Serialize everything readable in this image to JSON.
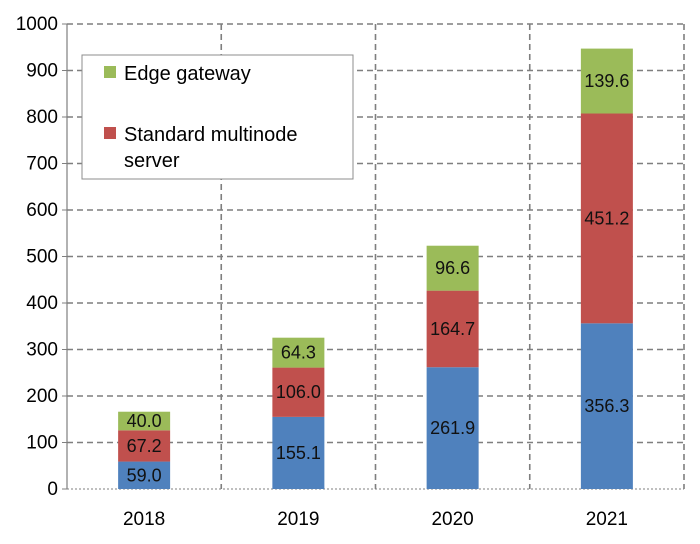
{
  "chart_data": {
    "type": "bar",
    "stacked": true,
    "categories": [
      "2018",
      "2019",
      "2020",
      "2021"
    ],
    "series": [
      {
        "name": "",
        "color": "#4f81bd",
        "values": [
          59.0,
          155.1,
          261.9,
          356.3
        ]
      },
      {
        "name": "Standard multinode server",
        "color": "#c0504d",
        "values": [
          67.2,
          106.0,
          164.7,
          451.2
        ]
      },
      {
        "name": "Edge gateway",
        "color": "#9bbb59",
        "values": [
          40.0,
          64.3,
          96.6,
          139.6
        ]
      }
    ],
    "ylim": [
      0,
      1000
    ],
    "yticks": [
      0,
      100,
      200,
      300,
      400,
      500,
      600,
      700,
      800,
      900,
      1000
    ],
    "grid": true,
    "legend": {
      "position": "top-left",
      "entries": [
        {
          "label_lines": [
            "Edge gateway"
          ],
          "color": "#9bbb59"
        },
        {
          "label_lines": [
            "Standard multinode",
            "server"
          ],
          "color": "#c0504d"
        }
      ]
    },
    "title": "",
    "xlabel": "",
    "ylabel": ""
  }
}
